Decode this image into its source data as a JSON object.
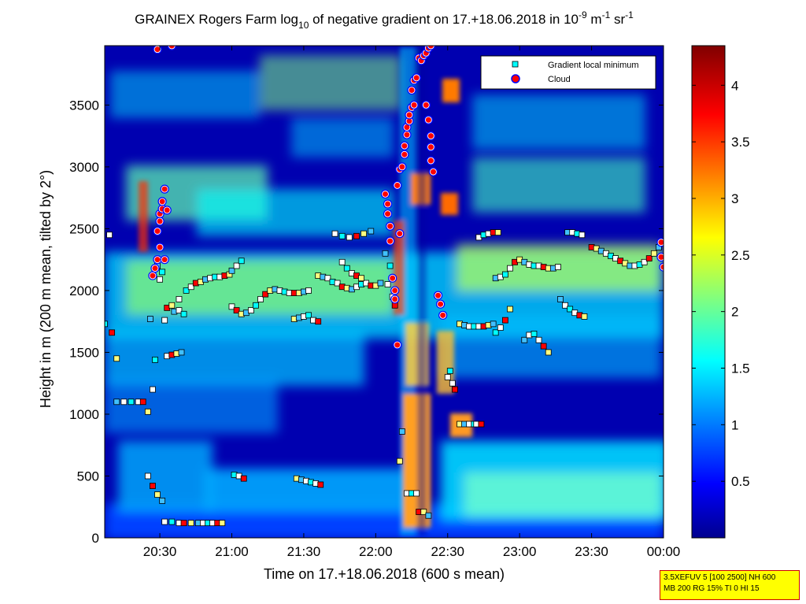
{
  "chart_data": {
    "type": "heatmap",
    "title": {
      "prefix": "GRAINEX Rogers Farm log",
      "sub": "10",
      "middle": " of negative gradient on 17.+18.06.2018 in 10",
      "sup1": "-9",
      "unit1": " m",
      "sup2": "-1",
      "unit2": " sr",
      "sup3": "-1"
    },
    "xlabel": "Time on 17.+18.06.2018 (600 s mean)",
    "ylabel": "Height in m (200 m mean, tilted by 2°)",
    "x_ticks": [
      "20:30",
      "21:00",
      "21:30",
      "22:00",
      "22:30",
      "23:00",
      "23:30",
      "00:00"
    ],
    "x_tick_minutes": [
      30,
      60,
      90,
      120,
      150,
      180,
      210,
      240
    ],
    "xlim_minutes_after_20h": [
      7,
      240
    ],
    "y_ticks": [
      0,
      500,
      1000,
      1500,
      2000,
      2500,
      3000,
      3500
    ],
    "ylim": [
      0,
      3980
    ],
    "colorbar": {
      "ticks": [
        "0.5",
        "1",
        "1.5",
        "2",
        "2.5",
        "3",
        "3.5",
        "4"
      ],
      "values": [
        0.5,
        1,
        1.5,
        2,
        2.5,
        3,
        3.5,
        4
      ],
      "range": [
        0,
        4.35
      ],
      "colormap": "jet"
    },
    "legend": {
      "position": "top-right",
      "entries": [
        {
          "label": "Gradient local minimum",
          "marker": "square",
          "color": "#00ffff"
        },
        {
          "label": "Cloud",
          "marker": "circle",
          "color": "#ff0000",
          "edge": "#0000ff"
        }
      ]
    },
    "series": [
      {
        "name": "Gradient local minimum",
        "points": [
          [
            7,
            1730
          ],
          [
            9,
            2450
          ],
          [
            10,
            1660
          ],
          [
            12,
            1450
          ],
          [
            12,
            1100
          ],
          [
            15,
            1100
          ],
          [
            18,
            1100
          ],
          [
            21,
            1100
          ],
          [
            23,
            1100
          ],
          [
            25,
            1020
          ],
          [
            26,
            1770
          ],
          [
            27,
            1200
          ],
          [
            28,
            1440
          ],
          [
            25,
            500
          ],
          [
            27,
            420
          ],
          [
            29,
            350
          ],
          [
            31,
            300
          ],
          [
            32,
            130
          ],
          [
            35,
            130
          ],
          [
            38,
            120
          ],
          [
            40,
            120
          ],
          [
            43,
            120
          ],
          [
            46,
            120
          ],
          [
            48,
            120
          ],
          [
            50,
            120
          ],
          [
            52,
            120
          ],
          [
            54,
            120
          ],
          [
            56,
            120
          ],
          [
            29,
            2200
          ],
          [
            30,
            2090
          ],
          [
            31,
            2150
          ],
          [
            32,
            1760
          ],
          [
            33,
            1860
          ],
          [
            35,
            1880
          ],
          [
            36,
            1830
          ],
          [
            38,
            1840
          ],
          [
            40,
            1810
          ],
          [
            33,
            1470
          ],
          [
            35,
            1480
          ],
          [
            37,
            1490
          ],
          [
            39,
            1500
          ],
          [
            38,
            1930
          ],
          [
            41,
            2000
          ],
          [
            43,
            2030
          ],
          [
            45,
            2060
          ],
          [
            47,
            2070
          ],
          [
            49,
            2090
          ],
          [
            51,
            2100
          ],
          [
            53,
            2110
          ],
          [
            55,
            2110
          ],
          [
            57,
            2120
          ],
          [
            59,
            2130
          ],
          [
            60,
            2160
          ],
          [
            62,
            2200
          ],
          [
            64,
            2240
          ],
          [
            60,
            1870
          ],
          [
            62,
            1840
          ],
          [
            64,
            1810
          ],
          [
            66,
            1820
          ],
          [
            68,
            1840
          ],
          [
            70,
            1880
          ],
          [
            72,
            1930
          ],
          [
            74,
            1970
          ],
          [
            76,
            2000
          ],
          [
            78,
            2010
          ],
          [
            80,
            2000
          ],
          [
            82,
            1990
          ],
          [
            84,
            1980
          ],
          [
            86,
            1980
          ],
          [
            88,
            1980
          ],
          [
            90,
            1990
          ],
          [
            92,
            2000
          ],
          [
            61,
            510
          ],
          [
            63,
            500
          ],
          [
            65,
            480
          ],
          [
            87,
            480
          ],
          [
            89,
            470
          ],
          [
            91,
            460
          ],
          [
            93,
            450
          ],
          [
            95,
            440
          ],
          [
            97,
            430
          ],
          [
            86,
            1770
          ],
          [
            88,
            1780
          ],
          [
            90,
            1790
          ],
          [
            92,
            1800
          ],
          [
            94,
            1760
          ],
          [
            96,
            1750
          ],
          [
            96,
            2120
          ],
          [
            98,
            2110
          ],
          [
            100,
            2100
          ],
          [
            102,
            2070
          ],
          [
            104,
            2060
          ],
          [
            106,
            2030
          ],
          [
            108,
            2020
          ],
          [
            110,
            2010
          ],
          [
            112,
            2030
          ],
          [
            114,
            2050
          ],
          [
            116,
            2060
          ],
          [
            118,
            2040
          ],
          [
            120,
            2040
          ],
          [
            122,
            2060
          ],
          [
            103,
            2460
          ],
          [
            106,
            2440
          ],
          [
            109,
            2430
          ],
          [
            112,
            2440
          ],
          [
            115,
            2460
          ],
          [
            118,
            2480
          ],
          [
            106,
            2230
          ],
          [
            108,
            2180
          ],
          [
            110,
            2140
          ],
          [
            112,
            2120
          ],
          [
            114,
            2100
          ],
          [
            124,
            2300
          ],
          [
            125,
            2050
          ],
          [
            126,
            2200
          ],
          [
            127,
            1950
          ],
          [
            128,
            1880
          ],
          [
            130,
            620
          ],
          [
            131,
            860
          ],
          [
            133,
            360
          ],
          [
            135,
            360
          ],
          [
            137,
            360
          ],
          [
            138,
            210
          ],
          [
            140,
            210
          ],
          [
            142,
            180
          ],
          [
            150,
            1300
          ],
          [
            151,
            1350
          ],
          [
            152,
            1250
          ],
          [
            153,
            1200
          ],
          [
            155,
            920
          ],
          [
            157,
            920
          ],
          [
            159,
            920
          ],
          [
            161,
            920
          ],
          [
            162,
            920
          ],
          [
            164,
            920
          ],
          [
            155,
            1730
          ],
          [
            157,
            1720
          ],
          [
            159,
            1710
          ],
          [
            161,
            1710
          ],
          [
            163,
            1710
          ],
          [
            165,
            1710
          ],
          [
            167,
            1720
          ],
          [
            169,
            1730
          ],
          [
            163,
            2430
          ],
          [
            165,
            2450
          ],
          [
            167,
            2460
          ],
          [
            169,
            2470
          ],
          [
            171,
            2470
          ],
          [
            170,
            2100
          ],
          [
            172,
            2110
          ],
          [
            174,
            2130
          ],
          [
            176,
            2180
          ],
          [
            178,
            2230
          ],
          [
            180,
            2250
          ],
          [
            182,
            2230
          ],
          [
            184,
            2210
          ],
          [
            186,
            2200
          ],
          [
            188,
            2200
          ],
          [
            190,
            2190
          ],
          [
            192,
            2180
          ],
          [
            194,
            2180
          ],
          [
            196,
            2190
          ],
          [
            170,
            1660
          ],
          [
            172,
            1700
          ],
          [
            174,
            1760
          ],
          [
            176,
            1850
          ],
          [
            182,
            1600
          ],
          [
            184,
            1640
          ],
          [
            186,
            1650
          ],
          [
            188,
            1600
          ],
          [
            190,
            1550
          ],
          [
            192,
            1500
          ],
          [
            197,
            1930
          ],
          [
            199,
            1880
          ],
          [
            201,
            1850
          ],
          [
            203,
            1820
          ],
          [
            205,
            1800
          ],
          [
            207,
            1790
          ],
          [
            200,
            2470
          ],
          [
            202,
            2470
          ],
          [
            204,
            2460
          ],
          [
            206,
            2450
          ],
          [
            210,
            2350
          ],
          [
            212,
            2340
          ],
          [
            214,
            2320
          ],
          [
            216,
            2300
          ],
          [
            218,
            2280
          ],
          [
            220,
            2260
          ],
          [
            222,
            2240
          ],
          [
            224,
            2220
          ],
          [
            226,
            2200
          ],
          [
            228,
            2200
          ],
          [
            230,
            2210
          ],
          [
            232,
            2230
          ],
          [
            234,
            2260
          ],
          [
            236,
            2300
          ],
          [
            238,
            2350
          ],
          [
            240,
            2400
          ]
        ]
      },
      {
        "name": "Cloud",
        "points": [
          [
            27,
            2120
          ],
          [
            28,
            2180
          ],
          [
            29,
            2250
          ],
          [
            29,
            2480
          ],
          [
            30,
            2350
          ],
          [
            30,
            2560
          ],
          [
            30,
            2620
          ],
          [
            31,
            2660
          ],
          [
            31,
            2720
          ],
          [
            32,
            2820
          ],
          [
            32,
            2250
          ],
          [
            33,
            2650
          ],
          [
            29,
            3950
          ],
          [
            35,
            3980
          ],
          [
            124,
            2780
          ],
          [
            125,
            2700
          ],
          [
            125,
            2620
          ],
          [
            126,
            2520
          ],
          [
            126,
            2400
          ],
          [
            127,
            2100
          ],
          [
            128,
            1930
          ],
          [
            128,
            2000
          ],
          [
            129,
            1560
          ],
          [
            130,
            2460
          ],
          [
            129,
            2850
          ],
          [
            130,
            2980
          ],
          [
            131,
            3000
          ],
          [
            132,
            3100
          ],
          [
            132,
            3170
          ],
          [
            133,
            3260
          ],
          [
            133,
            3320
          ],
          [
            134,
            3370
          ],
          [
            135,
            3480
          ],
          [
            136,
            3500
          ],
          [
            134,
            3420
          ],
          [
            135,
            3620
          ],
          [
            136,
            3700
          ],
          [
            137,
            3720
          ],
          [
            138,
            3880
          ],
          [
            139,
            3860
          ],
          [
            140,
            3900
          ],
          [
            141,
            3920
          ],
          [
            142,
            3960
          ],
          [
            143,
            3980
          ],
          [
            141,
            3500
          ],
          [
            142,
            3380
          ],
          [
            143,
            3160
          ],
          [
            143,
            3050
          ],
          [
            144,
            2960
          ],
          [
            143,
            3250
          ],
          [
            146,
            1960
          ],
          [
            147,
            1890
          ],
          [
            148,
            1800
          ],
          [
            239,
            2270
          ],
          [
            240,
            2190
          ],
          [
            239,
            2390
          ]
        ]
      }
    ]
  },
  "info_box": {
    "line1": "3.5XEFUV 5 [100 2500] NH 600",
    "line2": "MB 200 RG 15% TI 0 HI 15"
  }
}
